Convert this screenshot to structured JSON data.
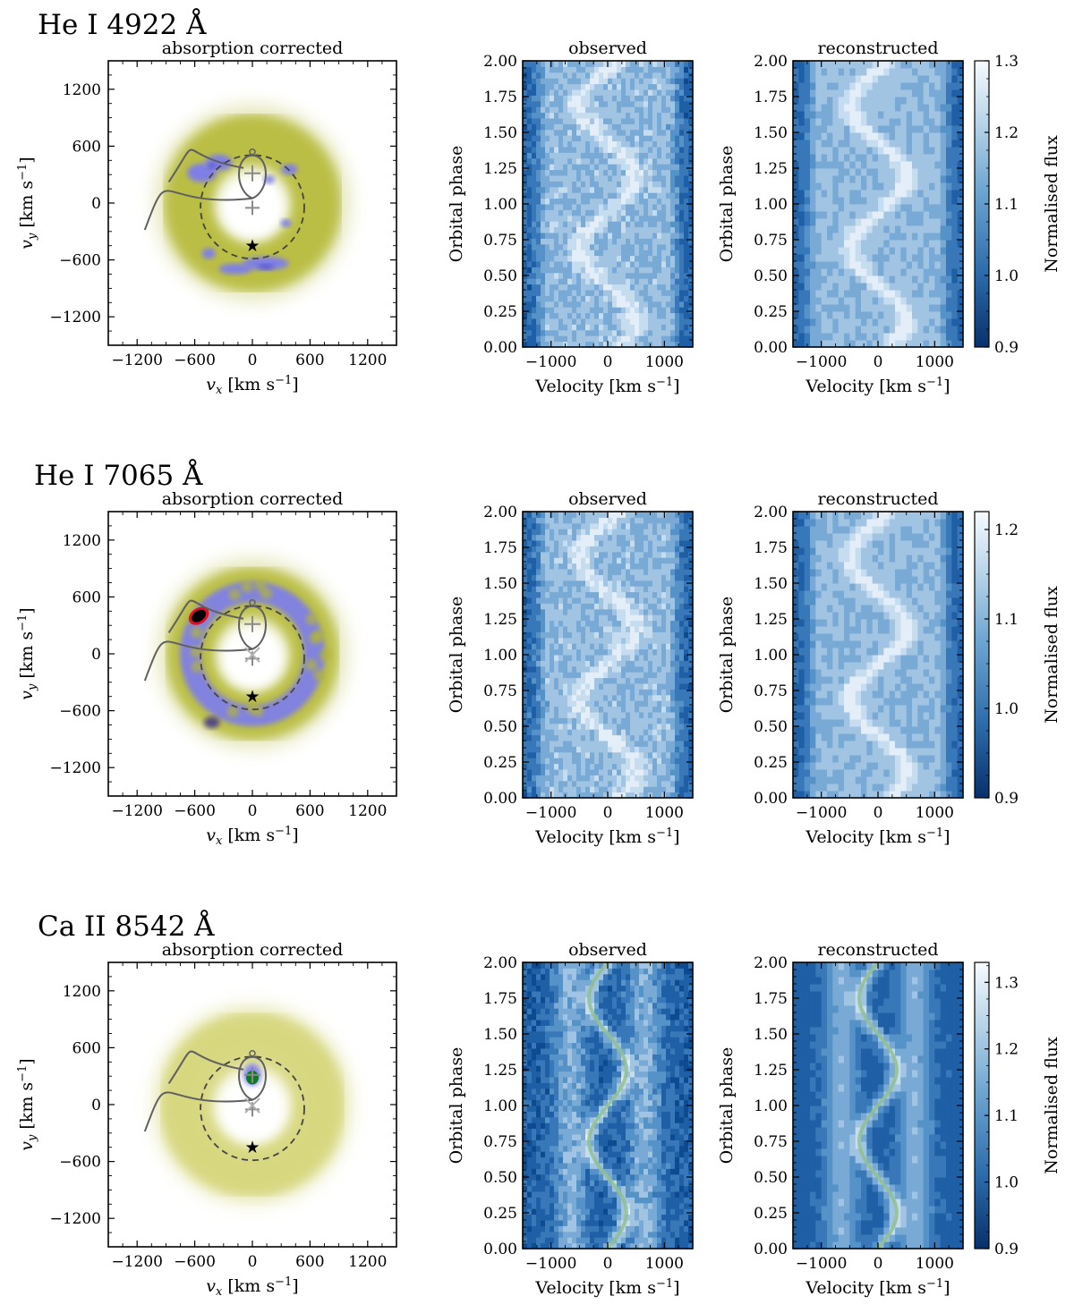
{
  "figure": {
    "colorbar_label": "Normalised flux",
    "map_title": "absorption corrected",
    "observed_title": "observed",
    "reconstructed_title": "reconstructed",
    "map_xlabel": "v_x [km s^-1]",
    "map_ylabel": "v_y [km s^-1]",
    "trail_xlabel": "Velocity [km s^-1]",
    "trail_ylabel": "Orbital phase"
  },
  "chart_data": [
    {
      "type": "heatmap",
      "name": "doppler-map",
      "line": "He I 4922 Å",
      "title": "absorption corrected",
      "xlabel": "v_x [km s^-1]",
      "ylabel": "v_y [km s^-1]",
      "xlim": [
        -1500,
        1500
      ],
      "ylim": [
        -1500,
        1500
      ],
      "xticks": [
        -1200,
        -600,
        0,
        600,
        1200
      ],
      "yticks": [
        -1200,
        -600,
        0,
        600,
        1200
      ],
      "xtick_labels": [
        "−1200",
        "−600",
        "0",
        "600",
        "1200"
      ],
      "ytick_labels": [
        "−1200",
        "−600",
        "0",
        "600",
        "1200"
      ],
      "emission_ring_radius_kms": 700,
      "colors": {
        "low": "#ffffff",
        "mid": "#b4b832",
        "high": "#7b7bf0",
        "peak": "#2a2a8a"
      },
      "markers": {
        "wd_star": [
          0,
          -440
        ],
        "cm_cross": [
          0,
          -50
        ],
        "donor_cross": [
          0,
          310
        ]
      },
      "roche_circle": {
        "center": [
          0,
          -40
        ],
        "radius": 540
      }
    },
    {
      "type": "heatmap",
      "name": "trailed-spectrum-observed",
      "line": "He I 4922 Å",
      "title": "observed",
      "xlabel": "Velocity [km s^-1]",
      "ylabel": "Orbital phase",
      "xlim": [
        -1500,
        1500
      ],
      "ylim": [
        0,
        2
      ],
      "xticks": [
        -1000,
        0,
        1000
      ],
      "xtick_labels": [
        "−1000",
        "0",
        "1000"
      ],
      "yticks": [
        0,
        0.25,
        0.5,
        0.75,
        1.0,
        1.25,
        1.5,
        1.75,
        2.0
      ],
      "ytick_labels": [
        "0.00",
        "0.25",
        "0.50",
        "0.75",
        "1.00",
        "1.25",
        "1.50",
        "1.75",
        "2.00"
      ]
    },
    {
      "type": "heatmap",
      "name": "trailed-spectrum-reconstructed",
      "line": "He I 4922 Å",
      "title": "reconstructed",
      "xlabel": "Velocity [km s^-1]",
      "ylabel": "Orbital phase",
      "xlim": [
        -1500,
        1500
      ],
      "ylim": [
        0,
        2
      ],
      "xticks": [
        -1000,
        0,
        1000
      ],
      "xtick_labels": [
        "−1000",
        "0",
        "1000"
      ],
      "yticks": [
        0,
        0.25,
        0.5,
        0.75,
        1.0,
        1.25,
        1.5,
        1.75,
        2.0
      ],
      "ytick_labels": [
        "0.00",
        "0.25",
        "0.50",
        "0.75",
        "1.00",
        "1.25",
        "1.50",
        "1.75",
        "2.00"
      ],
      "colorbar": {
        "label": "Normalised flux",
        "range": [
          0.9,
          1.3
        ],
        "ticks": [
          "0.9",
          "1.0",
          "1.1",
          "1.2",
          "1.3"
        ]
      }
    },
    {
      "type": "heatmap",
      "name": "doppler-map",
      "line": "He I 7065 Å",
      "title": "absorption corrected",
      "xlabel": "v_x [km s^-1]",
      "ylabel": "v_y [km s^-1]",
      "xlim": [
        -1500,
        1500
      ],
      "ylim": [
        -1500,
        1500
      ],
      "xticks": [
        -1200,
        -600,
        0,
        600,
        1200
      ],
      "yticks": [
        -1200,
        -600,
        0,
        600,
        1200
      ],
      "xtick_labels": [
        "−1200",
        "−600",
        "0",
        "600",
        "1200"
      ],
      "ytick_labels": [
        "−1200",
        "−600",
        "0",
        "600",
        "1200"
      ],
      "emission_ring_radius_kms": 680,
      "colors": {
        "low": "#ffffff",
        "mid": "#b4b832",
        "high": "#7b7bf0",
        "peak": "#000000",
        "contour": "#e0102a"
      },
      "markers": {
        "wd_star": [
          0,
          -440
        ],
        "cm_cross": [
          0,
          -50
        ],
        "donor_cross": [
          0,
          310
        ]
      },
      "roche_circle": {
        "center": [
          0,
          -40
        ],
        "radius": 540
      }
    },
    {
      "type": "heatmap",
      "name": "trailed-spectrum-observed",
      "line": "He I 7065 Å",
      "title": "observed",
      "xlabel": "Velocity [km s^-1]",
      "ylabel": "Orbital phase",
      "xlim": [
        -1500,
        1500
      ],
      "ylim": [
        0,
        2
      ],
      "xticks": [
        -1000,
        0,
        1000
      ],
      "xtick_labels": [
        "−1000",
        "0",
        "1000"
      ],
      "yticks": [
        0,
        0.25,
        0.5,
        0.75,
        1.0,
        1.25,
        1.5,
        1.75,
        2.0
      ],
      "ytick_labels": [
        "0.00",
        "0.25",
        "0.50",
        "0.75",
        "1.00",
        "1.25",
        "1.50",
        "1.75",
        "2.00"
      ]
    },
    {
      "type": "heatmap",
      "name": "trailed-spectrum-reconstructed",
      "line": "He I 7065 Å",
      "title": "reconstructed",
      "xlabel": "Velocity [km s^-1]",
      "ylabel": "Orbital phase",
      "xlim": [
        -1500,
        1500
      ],
      "ylim": [
        0,
        2
      ],
      "xticks": [
        -1000,
        0,
        1000
      ],
      "xtick_labels": [
        "−1000",
        "0",
        "1000"
      ],
      "yticks": [
        0,
        0.25,
        0.5,
        0.75,
        1.0,
        1.25,
        1.5,
        1.75,
        2.0
      ],
      "ytick_labels": [
        "0.00",
        "0.25",
        "0.50",
        "0.75",
        "1.00",
        "1.25",
        "1.50",
        "1.75",
        "2.00"
      ],
      "colorbar": {
        "label": "Normalised flux",
        "range": [
          0.9,
          1.22
        ],
        "ticks": [
          "0.9",
          "1.0",
          "1.1",
          "1.2"
        ]
      }
    },
    {
      "type": "heatmap",
      "name": "doppler-map",
      "line": "Ca II 8542 Å",
      "title": "absorption corrected",
      "xlabel": "v_x [km s^-1]",
      "ylabel": "v_y [km s^-1]",
      "xlim": [
        -1500,
        1500
      ],
      "ylim": [
        -1500,
        1500
      ],
      "xticks": [
        -1200,
        -600,
        0,
        600,
        1200
      ],
      "yticks": [
        -1200,
        -600,
        0,
        600,
        1200
      ],
      "xtick_labels": [
        "−1200",
        "−600",
        "0",
        "600",
        "1200"
      ],
      "ytick_labels": [
        "−1200",
        "−600",
        "0",
        "600",
        "1200"
      ],
      "emission_ring_radius_kms": 720,
      "colors": {
        "low": "#ffffff",
        "mid": "#d6d67a",
        "high": "#7b7bf0",
        "peak": "#0c7a20"
      },
      "markers": {
        "wd_star": [
          0,
          -440
        ],
        "cm_cross": [
          0,
          -50
        ],
        "donor_cross": [
          0,
          310
        ]
      },
      "roche_circle": {
        "center": [
          0,
          -40
        ],
        "radius": 540
      }
    },
    {
      "type": "heatmap",
      "name": "trailed-spectrum-observed",
      "line": "Ca II 8542 Å",
      "title": "observed",
      "xlabel": "Velocity [km s^-1]",
      "ylabel": "Orbital phase",
      "xlim": [
        -1500,
        1500
      ],
      "ylim": [
        0,
        2
      ],
      "xticks": [
        -1000,
        0,
        1000
      ],
      "xtick_labels": [
        "−1000",
        "0",
        "1000"
      ],
      "yticks": [
        0,
        0.25,
        0.5,
        0.75,
        1.0,
        1.25,
        1.5,
        1.75,
        2.0
      ],
      "ytick_labels": [
        "0.00",
        "0.25",
        "0.50",
        "0.75",
        "1.00",
        "1.25",
        "1.50",
        "1.75",
        "2.00"
      ],
      "sine_overlay": {
        "gamma": 0,
        "K": 330,
        "phase_zero": 0.0,
        "color": "#8fc08f"
      }
    },
    {
      "type": "heatmap",
      "name": "trailed-spectrum-reconstructed",
      "line": "Ca II 8542 Å",
      "title": "reconstructed",
      "xlabel": "Velocity [km s^-1]",
      "ylabel": "Orbital phase",
      "xlim": [
        -1500,
        1500
      ],
      "ylim": [
        0,
        2
      ],
      "xticks": [
        -1000,
        0,
        1000
      ],
      "xtick_labels": [
        "−1000",
        "0",
        "1000"
      ],
      "yticks": [
        0,
        0.25,
        0.5,
        0.75,
        1.0,
        1.25,
        1.5,
        1.75,
        2.0
      ],
      "ytick_labels": [
        "0.00",
        "0.25",
        "0.50",
        "0.75",
        "1.00",
        "1.25",
        "1.50",
        "1.75",
        "2.00"
      ],
      "sine_overlay": {
        "gamma": 0,
        "K": 330,
        "phase_zero": 0.0,
        "color": "#8fc08f"
      },
      "colorbar": {
        "label": "Normalised flux",
        "range": [
          0.9,
          1.33
        ],
        "ticks": [
          "0.9",
          "1.0",
          "1.1",
          "1.2",
          "1.3"
        ]
      }
    }
  ]
}
